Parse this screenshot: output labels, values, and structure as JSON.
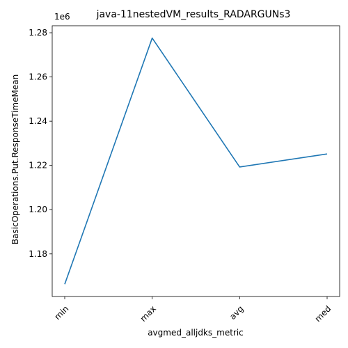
{
  "chart_data": {
    "type": "line",
    "title": "java-11nestedVM_results_RADARGUNs3",
    "xlabel": "avgmed_alljdks_metric",
    "ylabel": "BasicOperations.Put.ResponseTimeMean",
    "y_multiplier_label": "1e6",
    "categories": [
      "min",
      "max",
      "avg",
      "med"
    ],
    "series": [
      {
        "values": [
          1166300,
          1277600,
          1219300,
          1225200
        ]
      }
    ],
    "y_ticks": [
      1.18,
      1.2,
      1.22,
      1.24,
      1.26,
      1.28
    ],
    "y_tick_labels": [
      "1.18",
      "1.20",
      "1.22",
      "1.24",
      "1.26",
      "1.28"
    ],
    "y_tick_scale": 1000000,
    "ylim": [
      1160740,
      1283160
    ],
    "grid": false,
    "line_color": "#1f77b4"
  }
}
